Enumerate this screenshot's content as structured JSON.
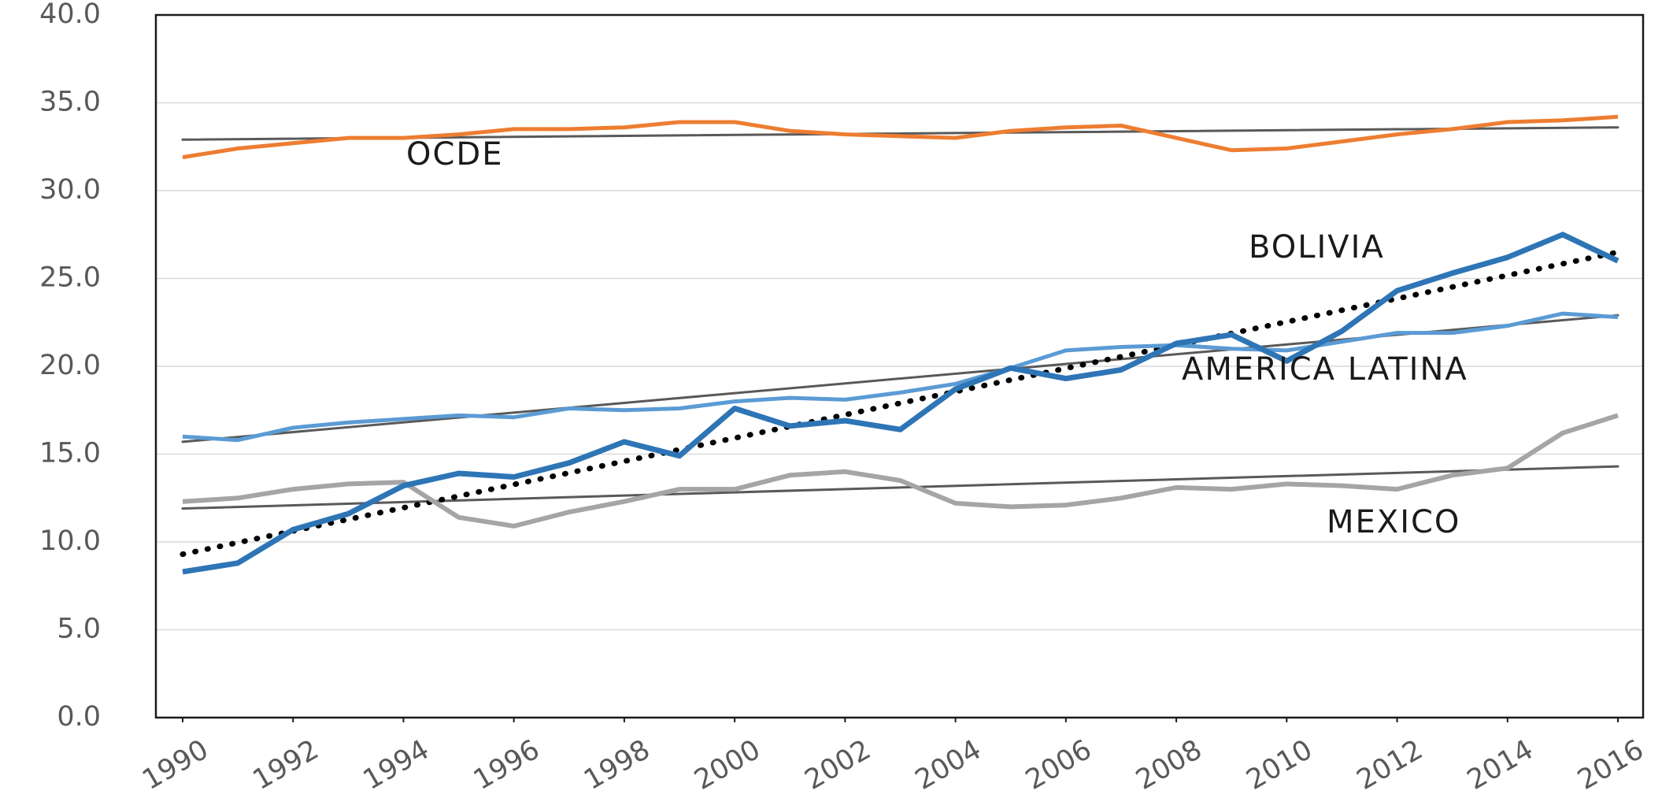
{
  "chart_data": {
    "type": "line",
    "x": [
      1990,
      1991,
      1992,
      1993,
      1994,
      1995,
      1996,
      1997,
      1998,
      1999,
      2000,
      2001,
      2002,
      2003,
      2004,
      2005,
      2006,
      2007,
      2008,
      2009,
      2010,
      2011,
      2012,
      2013,
      2014,
      2015,
      2016
    ],
    "series": [
      {
        "color": "#ed7d31",
        "width": 5,
        "values": [
          31.9,
          32.4,
          32.7,
          33.0,
          33.0,
          33.2,
          33.5,
          33.5,
          33.6,
          33.9,
          33.9,
          33.4,
          33.2,
          33.1,
          33.0,
          33.4,
          33.6,
          33.7,
          33.0,
          32.3,
          32.4,
          32.8,
          33.2,
          33.5,
          33.9,
          34.0,
          34.2
        ]
      },
      {
        "color": "#5b9bd5",
        "width": 5,
        "values": [
          16.0,
          15.8,
          16.5,
          16.8,
          17.0,
          17.2,
          17.1,
          17.6,
          17.5,
          17.6,
          18.0,
          18.2,
          18.1,
          18.5,
          19.0,
          19.9,
          20.9,
          21.1,
          21.2,
          21.0,
          20.9,
          21.4,
          21.9,
          21.9,
          22.3,
          23.0,
          22.8
        ]
      },
      {
        "color": "#a5a5a5",
        "width": 6,
        "values": [
          12.3,
          12.5,
          13.0,
          13.3,
          13.4,
          11.4,
          10.9,
          11.7,
          12.3,
          13.0,
          13.0,
          13.8,
          14.0,
          13.5,
          12.2,
          12.0,
          12.1,
          12.5,
          13.1,
          13.0,
          13.3,
          13.2,
          13.0,
          13.8,
          14.2,
          16.2,
          17.2
        ]
      },
      {
        "color": "#2e75b6",
        "width": 7,
        "values": [
          8.3,
          8.8,
          10.7,
          11.6,
          13.2,
          13.9,
          13.7,
          14.5,
          15.7,
          14.9,
          17.6,
          16.6,
          16.9,
          16.4,
          18.7,
          19.9,
          19.3,
          19.8,
          21.3,
          21.8,
          20.3,
          22.0,
          24.3,
          25.3,
          26.2,
          27.5,
          26.0
        ]
      }
    ],
    "trendlines": [
      {
        "color": "#595959",
        "dotted": false,
        "x": [
          1990,
          2016
        ],
        "values": [
          32.9,
          33.6
        ]
      },
      {
        "color": "#595959",
        "dotted": false,
        "x": [
          1990,
          2016
        ],
        "values": [
          15.7,
          22.9
        ]
      },
      {
        "color": "#595959",
        "dotted": false,
        "x": [
          1990,
          2016
        ],
        "values": [
          11.9,
          14.3
        ]
      },
      {
        "color": "#000000",
        "dotted": true,
        "x": [
          1990,
          2016
        ],
        "values": [
          9.3,
          26.5
        ]
      }
    ],
    "annotations": [
      "OCDE",
      "BOLIVIA",
      "AMERICA LATINA",
      "MEXICO"
    ],
    "xlim": [
      1990,
      2016
    ],
    "xticks": [
      1990,
      1992,
      1994,
      1996,
      1998,
      2000,
      2002,
      2004,
      2006,
      2008,
      2010,
      2012,
      2014,
      2016
    ],
    "ylim": [
      0,
      40
    ],
    "yticks": [
      {
        "value": 0,
        "label": "0.0"
      },
      {
        "value": 5,
        "label": "5.0"
      },
      {
        "value": 10,
        "label": "10.0"
      },
      {
        "value": 15,
        "label": "15.0"
      },
      {
        "value": 20,
        "label": "20.0"
      },
      {
        "value": 25,
        "label": "25.0"
      },
      {
        "value": 30,
        "label": "30.0"
      },
      {
        "value": 35,
        "label": "35.0"
      },
      {
        "value": 40,
        "label": "40.0"
      }
    ],
    "grid": true
  }
}
